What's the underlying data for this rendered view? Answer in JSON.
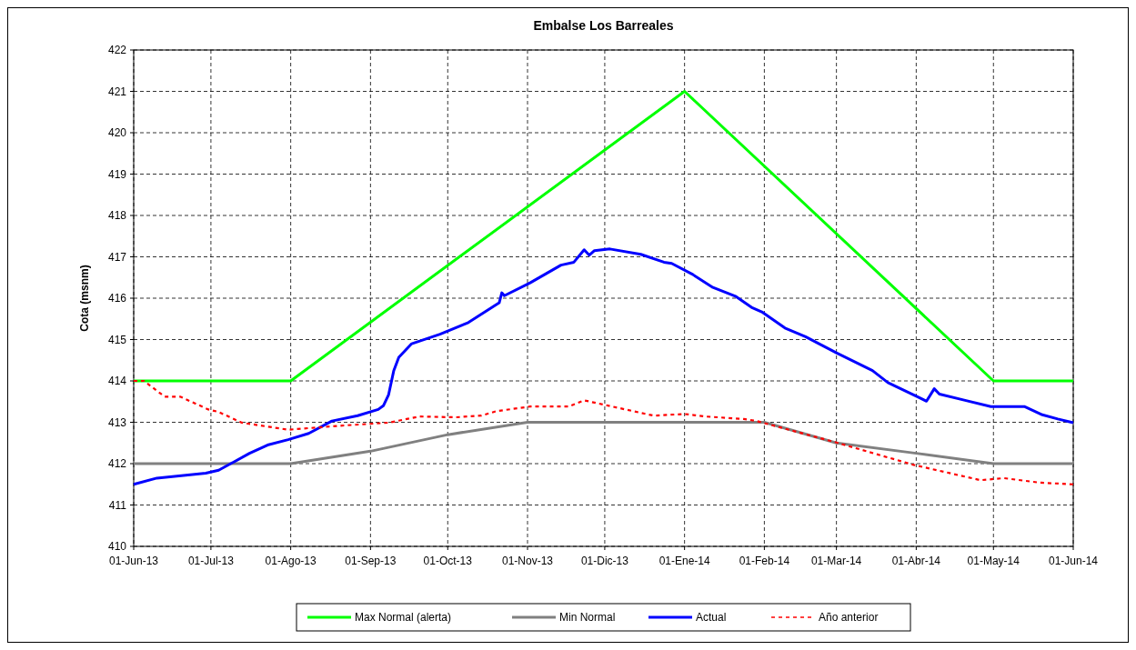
{
  "chart_data": {
    "type": "line",
    "title": "Embalse Los Barreales",
    "ylabel": "Cota (msnm)",
    "xlim": [
      "2013-06-01",
      "2014-06-01"
    ],
    "xticks": [
      {
        "value": "2013-06-01",
        "label": "01-Jun-13"
      },
      {
        "value": "2013-07-01",
        "label": "01-Jul-13"
      },
      {
        "value": "2013-08-01",
        "label": "01-Ago-13"
      },
      {
        "value": "2013-09-01",
        "label": "01-Sep-13"
      },
      {
        "value": "2013-10-01",
        "label": "01-Oct-13"
      },
      {
        "value": "2013-11-01",
        "label": "01-Nov-13"
      },
      {
        "value": "2013-12-01",
        "label": "01-Dic-13"
      },
      {
        "value": "2014-01-01",
        "label": "01-Ene-14"
      },
      {
        "value": "2014-02-01",
        "label": "01-Feb-14"
      },
      {
        "value": "2014-03-01",
        "label": "01-Mar-14"
      },
      {
        "value": "2014-04-01",
        "label": "01-Abr-14"
      },
      {
        "value": "2014-05-01",
        "label": "01-May-14"
      },
      {
        "value": "2014-06-01",
        "label": "01-Jun-14"
      }
    ],
    "ylim": [
      410,
      422
    ],
    "yticks": [
      410,
      411,
      412,
      413,
      414,
      415,
      416,
      417,
      418,
      419,
      420,
      421,
      422
    ],
    "grid": true,
    "legend": "bottom",
    "marker": "none",
    "series": [
      {
        "name": "Max Normal (alerta)",
        "color": "#00ff00",
        "line_style": "solid",
        "x": [
          "2013-06-01",
          "2013-08-01",
          "2014-01-01",
          "2014-05-01",
          "2014-06-01"
        ],
        "values": [
          414,
          414,
          421,
          414,
          414
        ]
      },
      {
        "name": "Min Normal",
        "color": "#808080",
        "line_style": "solid",
        "x": [
          "2013-06-01",
          "2013-08-01",
          "2013-09-01",
          "2013-10-01",
          "2013-11-01",
          "2014-02-01",
          "2014-03-01",
          "2014-04-01",
          "2014-05-01",
          "2014-06-01"
        ],
        "values": [
          412,
          412,
          412.3,
          412.7,
          413,
          413,
          412.5,
          412.25,
          412,
          412
        ]
      },
      {
        "name": "Actual",
        "color": "#0000ff",
        "line_style": "solid",
        "x": [
          "2013-06-01",
          "2013-06-10",
          "2013-06-29",
          "2013-07-04",
          "2013-07-09",
          "2013-07-16",
          "2013-07-23",
          "2013-07-31",
          "2013-08-08",
          "2013-08-17",
          "2013-08-27",
          "2013-09-04",
          "2013-09-06",
          "2013-09-08",
          "2013-09-10",
          "2013-09-12",
          "2013-09-17",
          "2013-09-28",
          "2013-10-09",
          "2013-10-21",
          "2013-10-22",
          "2013-10-23",
          "2013-11-02",
          "2013-11-14",
          "2013-11-19",
          "2013-11-23",
          "2013-11-25",
          "2013-11-27",
          "2013-12-03",
          "2013-12-15",
          "2013-12-24",
          "2013-12-27",
          "2014-01-04",
          "2014-01-12",
          "2014-01-21",
          "2014-01-27",
          "2014-01-31",
          "2014-02-09",
          "2014-02-17",
          "2014-03-01",
          "2014-03-15",
          "2014-03-21",
          "2014-04-02",
          "2014-04-05",
          "2014-04-08",
          "2014-04-10",
          "2014-04-20",
          "2014-04-30",
          "2014-05-13",
          "2014-05-20",
          "2014-05-26",
          "2014-06-01"
        ],
        "values": [
          411.5,
          411.65,
          411.77,
          411.84,
          412.01,
          412.25,
          412.45,
          412.58,
          412.73,
          413.03,
          413.16,
          413.31,
          413.4,
          413.66,
          414.24,
          414.57,
          414.9,
          415.13,
          415.41,
          415.89,
          416.13,
          416.06,
          416.37,
          416.8,
          416.87,
          417.17,
          417.04,
          417.15,
          417.19,
          417.06,
          416.87,
          416.84,
          416.58,
          416.26,
          416.04,
          415.78,
          415.67,
          415.28,
          415.07,
          414.68,
          414.25,
          413.96,
          413.6,
          413.51,
          413.81,
          413.68,
          413.53,
          413.38,
          413.38,
          413.18,
          413.08,
          412.99
        ]
      },
      {
        "name": "Año anterior",
        "color": "#ff0000",
        "line_style": "dashed",
        "x": [
          "2013-06-01",
          "2013-06-05",
          "2013-06-13",
          "2013-06-19",
          "2013-06-30",
          "2013-07-04",
          "2013-07-13",
          "2013-07-31",
          "2013-08-21",
          "2013-09-08",
          "2013-09-20",
          "2013-10-04",
          "2013-10-14",
          "2013-10-20",
          "2013-11-02",
          "2013-11-17",
          "2013-11-23",
          "2013-12-01",
          "2013-12-20",
          "2014-01-01",
          "2014-01-09",
          "2014-01-24",
          "2014-01-29",
          "2014-03-01",
          "2014-03-31",
          "2014-04-26",
          "2014-05-05",
          "2014-05-19",
          "2014-06-01"
        ],
        "values": [
          414,
          414,
          413.62,
          413.62,
          413.31,
          413.25,
          412.99,
          412.82,
          412.92,
          412.99,
          413.14,
          413.12,
          413.16,
          413.27,
          413.38,
          413.38,
          413.53,
          413.42,
          413.16,
          413.2,
          413.14,
          413.08,
          413.03,
          412.51,
          411.97,
          411.6,
          411.65,
          411.54,
          411.5
        ]
      }
    ]
  }
}
